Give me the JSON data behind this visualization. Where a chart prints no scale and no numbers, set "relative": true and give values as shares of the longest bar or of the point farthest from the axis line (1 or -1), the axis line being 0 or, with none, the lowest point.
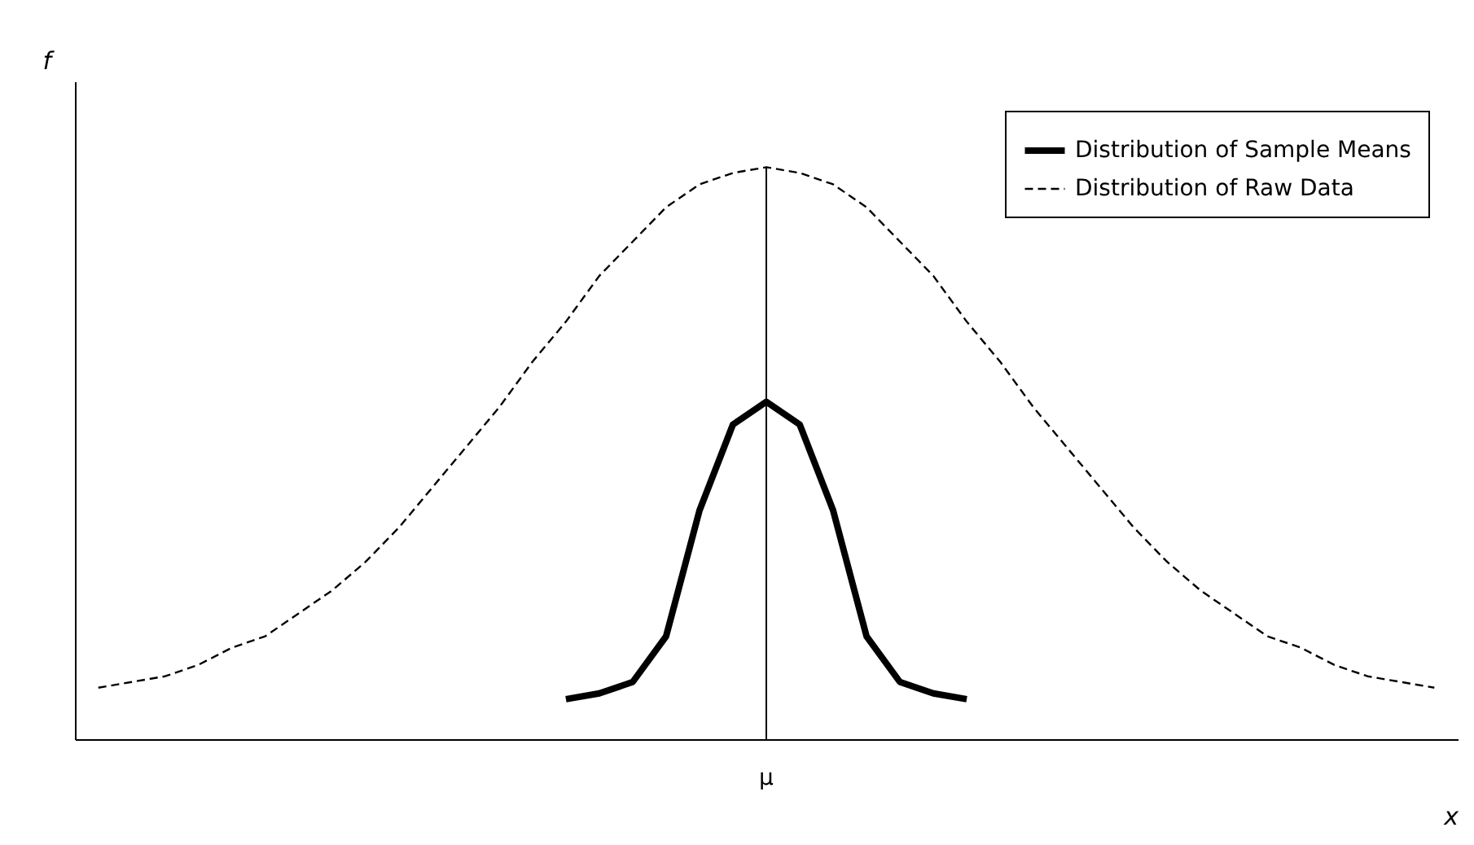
{
  "chart_data": {
    "type": "line",
    "relative": true,
    "xlabel": "x",
    "ylabel": "f",
    "legend": "top right",
    "categories": [
      null,
      null,
      null,
      null,
      null,
      null,
      null,
      null,
      null,
      null,
      null,
      null,
      null,
      null,
      null,
      null,
      null,
      null,
      null,
      null,
      null,
      null,
      null,
      null,
      null,
      null,
      null,
      null,
      null,
      null,
      null,
      null,
      null,
      null,
      null,
      null,
      null,
      null,
      null,
      null,
      null
    ],
    "series": [
      {
        "name": "Distribution of Sample Means",
        "color": "#000000",
        "line_style": "solid",
        "values": [
          null,
          null,
          null,
          null,
          null,
          null,
          null,
          null,
          null,
          null,
          null,
          null,
          null,
          null,
          0.07,
          0.08,
          0.1,
          0.18,
          0.4,
          0.55,
          0.59,
          0.55,
          0.4,
          0.18,
          0.1,
          0.08,
          0.07,
          null,
          null,
          null,
          null,
          null,
          null,
          null,
          null,
          null,
          null,
          null,
          null,
          null,
          null
        ]
      },
      {
        "name": "Distribution of Raw Data",
        "color": "#000000",
        "line_style": "dashed",
        "values": [
          0.09,
          0.1,
          0.11,
          0.13,
          0.16,
          0.18,
          0.22,
          0.26,
          0.31,
          0.37,
          0.44,
          0.51,
          0.58,
          0.66,
          0.73,
          0.81,
          0.87,
          0.93,
          0.97,
          0.99,
          1.0,
          0.99,
          0.97,
          0.93,
          0.87,
          0.81,
          0.73,
          0.66,
          0.58,
          0.51,
          0.44,
          0.37,
          0.31,
          0.26,
          0.22,
          0.18,
          0.16,
          0.13,
          0.11,
          0.1,
          0.09
        ]
      }
    ],
    "ref_lines": [
      {
        "axis": "x",
        "label": "μ",
        "color": "#000000",
        "line_style": "solid"
      }
    ]
  }
}
